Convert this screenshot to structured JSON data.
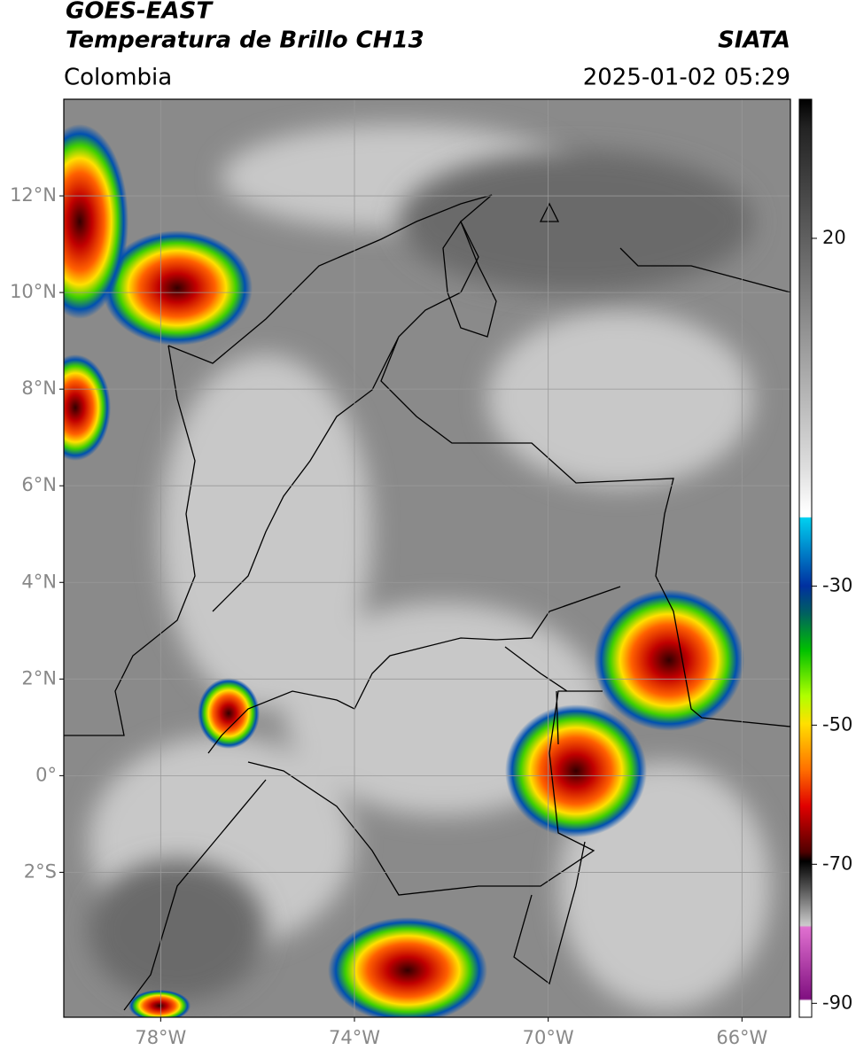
{
  "header": {
    "title": "GOES-EAST",
    "subtitle": "Temperatura de Brillo CH13",
    "source": "SIATA",
    "region": "Colombia",
    "datetime": "2025-01-02 05:29"
  },
  "map": {
    "xlim": [
      -80,
      -65
    ],
    "ylim": [
      -5,
      14
    ],
    "lat_ticks": [
      {
        "value": 12,
        "label": "12°N"
      },
      {
        "value": 10,
        "label": "10°N"
      },
      {
        "value": 8,
        "label": "8°N"
      },
      {
        "value": 6,
        "label": "6°N"
      },
      {
        "value": 4,
        "label": "4°N"
      },
      {
        "value": 2,
        "label": "2°N"
      },
      {
        "value": 0,
        "label": "0°"
      },
      {
        "value": -2,
        "label": "2°S"
      }
    ],
    "lon_ticks": [
      {
        "value": -78,
        "label": "78°W"
      },
      {
        "value": -74,
        "label": "74°W"
      },
      {
        "value": -70,
        "label": "70°W"
      },
      {
        "value": -66,
        "label": "66°W"
      }
    ]
  },
  "colorbar": {
    "range": [
      -92,
      40
    ],
    "ticks": [
      20,
      -30,
      -50,
      -70,
      -90
    ]
  }
}
